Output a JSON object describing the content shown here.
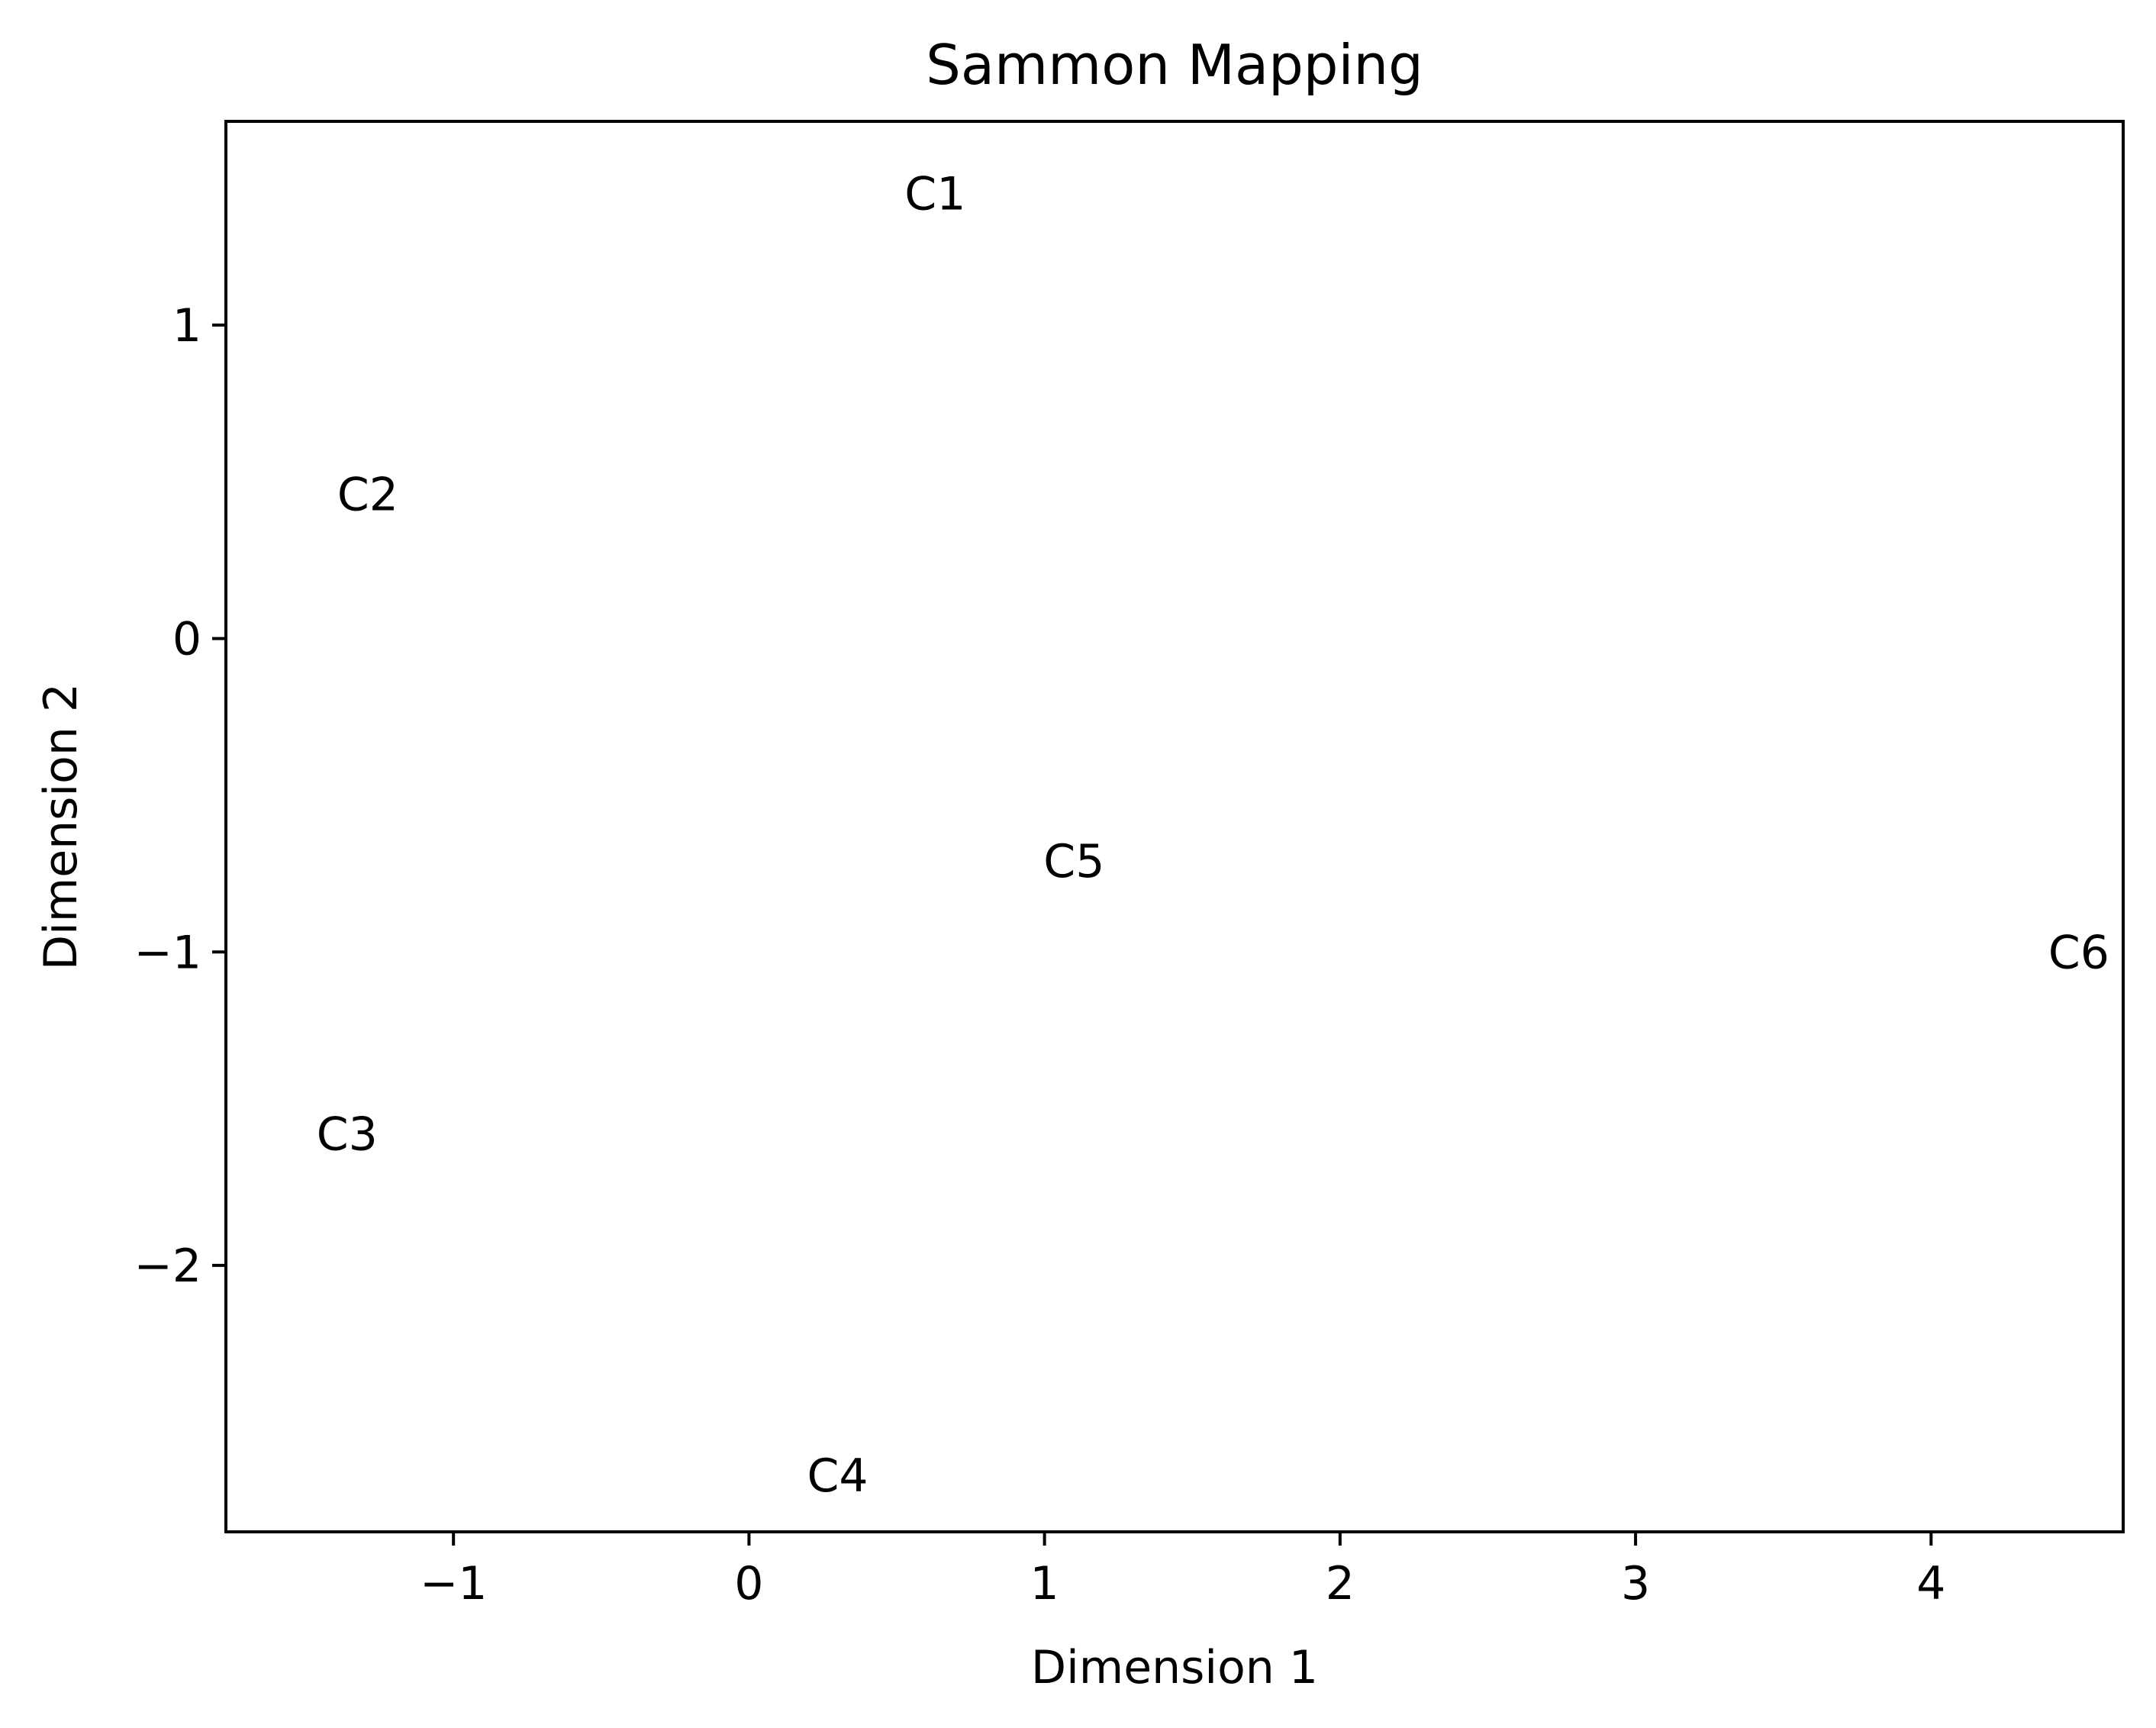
{
  "chart_data": {
    "type": "scatter",
    "title": "Sammon Mapping",
    "xlabel": "Dimension 1",
    "ylabel": "Dimension 2",
    "xlim": [
      -1.77,
      4.65
    ],
    "ylim": [
      -2.85,
      1.65
    ],
    "xticks": [
      -1,
      0,
      1,
      2,
      3,
      4
    ],
    "xtick_labels": [
      "−1",
      "0",
      "1",
      "2",
      "3",
      "4"
    ],
    "yticks": [
      1,
      0,
      -1,
      -2
    ],
    "ytick_labels": [
      "1",
      "0",
      "−1",
      "−2"
    ],
    "grid": false,
    "points": [
      {
        "label": "C1",
        "x": 0.63,
        "y": 1.42
      },
      {
        "label": "C2",
        "x": -1.29,
        "y": 0.46
      },
      {
        "label": "C3",
        "x": -1.36,
        "y": -1.58
      },
      {
        "label": "C4",
        "x": 0.3,
        "y": -2.67
      },
      {
        "label": "C5",
        "x": 1.1,
        "y": -0.71
      },
      {
        "label": "C6",
        "x": 4.5,
        "y": -1.0
      }
    ]
  }
}
